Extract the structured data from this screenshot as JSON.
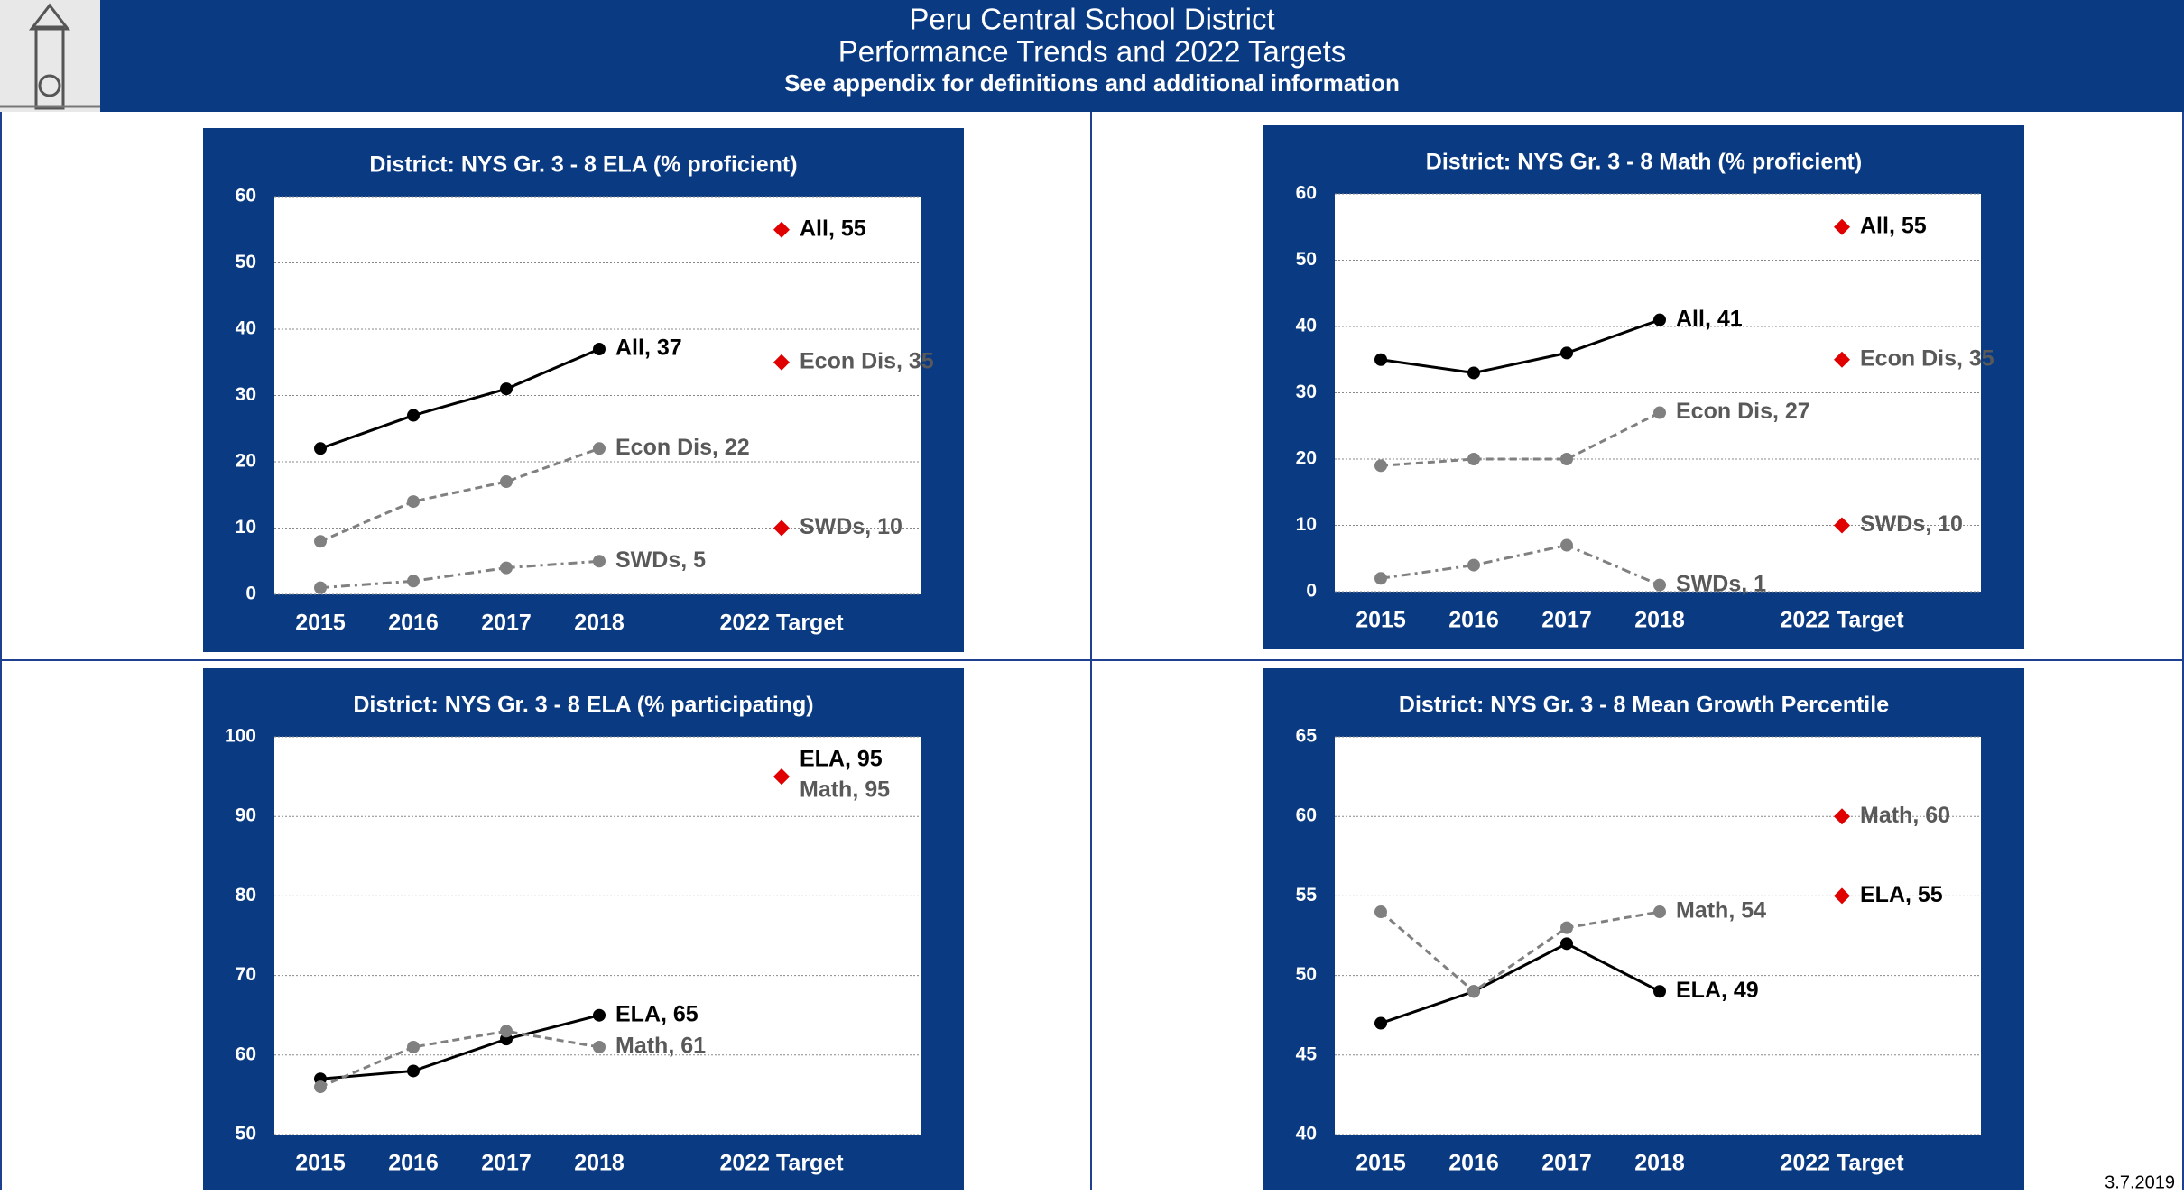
{
  "header": {
    "title": "Peru Central School District",
    "subtitle": "Performance Trends and 2022 Targets",
    "note": "See appendix for definitions and additional information",
    "date": "3.7.2019"
  },
  "chart_data": [
    {
      "type": "line",
      "title": "District:  NYS Gr. 3 - 8 ELA (% proficient)",
      "categories": [
        "2015",
        "2016",
        "2017",
        "2018",
        "2022 Target"
      ],
      "ylim": [
        0,
        60
      ],
      "yticks": [
        0,
        10,
        20,
        30,
        40,
        50,
        60
      ],
      "grid": true,
      "target_color": "#e00000",
      "series": [
        {
          "color": "#000000",
          "label_color": "#000000",
          "dash": "none",
          "values": [
            22,
            27,
            31,
            37,
            null
          ],
          "value_label": "All, 37",
          "target": 55,
          "target_label": "All, 55"
        },
        {
          "color": "#808080",
          "label_color": "#595959",
          "dash": "8 5",
          "values": [
            8,
            14,
            17,
            22,
            null
          ],
          "value_label": "Econ Dis, 22",
          "target": 35,
          "target_label": "Econ Dis, 35"
        },
        {
          "color": "#808080",
          "label_color": "#595959",
          "dash": "10 5 3 5",
          "values": [
            1,
            2,
            4,
            5,
            null
          ],
          "value_label": "SWDs, 5",
          "target": 10,
          "target_label": "SWDs, 10"
        }
      ]
    },
    {
      "type": "line",
      "title": "District:  NYS Gr. 3 - 8 Math (% proficient)",
      "categories": [
        "2015",
        "2016",
        "2017",
        "2018",
        "2022 Target"
      ],
      "ylim": [
        0,
        60
      ],
      "yticks": [
        0,
        10,
        20,
        30,
        40,
        50,
        60
      ],
      "grid": true,
      "target_color": "#e00000",
      "series": [
        {
          "color": "#000000",
          "label_color": "#000000",
          "dash": "none",
          "values": [
            35,
            33,
            36,
            41,
            null
          ],
          "value_label": "All, 41",
          "target": 55,
          "target_label": "All, 55"
        },
        {
          "color": "#808080",
          "label_color": "#595959",
          "dash": "8 5",
          "values": [
            19,
            20,
            20,
            27,
            null
          ],
          "value_label": "Econ Dis, 27",
          "target": 35,
          "target_label": "Econ Dis, 35"
        },
        {
          "color": "#808080",
          "label_color": "#595959",
          "dash": "10 5 3 5",
          "values": [
            2,
            4,
            7,
            1,
            null
          ],
          "value_label": "SWDs, 1",
          "target": 10,
          "target_label": "SWDs, 10"
        }
      ]
    },
    {
      "type": "line",
      "title": "District:  NYS Gr. 3 - 8 ELA (% participating)",
      "categories": [
        "2015",
        "2016",
        "2017",
        "2018",
        "2022 Target"
      ],
      "ylim": [
        50,
        100
      ],
      "yticks": [
        50,
        60,
        70,
        80,
        90,
        100
      ],
      "grid": true,
      "target_color": "#e00000",
      "series": [
        {
          "color": "#000000",
          "label_color": "#000000",
          "dash": "none",
          "values": [
            57,
            58,
            62,
            65,
            null
          ],
          "value_label": "ELA, 65",
          "target": 95,
          "target_label": "ELA, 95"
        },
        {
          "color": "#808080",
          "label_color": "#595959",
          "dash": "8 5",
          "values": [
            56,
            61,
            63,
            61,
            null
          ],
          "value_label": "Math, 61",
          "target": 95,
          "target_label": "Math, 95"
        }
      ]
    },
    {
      "type": "line",
      "title": "District:  NYS Gr. 3 - 8 Mean Growth Percentile",
      "categories": [
        "2015",
        "2016",
        "2017",
        "2018",
        "2022 Target"
      ],
      "ylim": [
        40,
        65
      ],
      "yticks": [
        40,
        45,
        50,
        55,
        60,
        65
      ],
      "grid": true,
      "target_color": "#e00000",
      "series": [
        {
          "color": "#000000",
          "label_color": "#000000",
          "dash": "none",
          "values": [
            47,
            49,
            52,
            49,
            null
          ],
          "value_label": "ELA, 49",
          "target": 55,
          "target_label": "ELA, 55"
        },
        {
          "color": "#808080",
          "label_color": "#595959",
          "dash": "8 5",
          "values": [
            54,
            49,
            53,
            54,
            null
          ],
          "value_label": "Math, 54",
          "target": 60,
          "target_label": "Math, 60"
        }
      ]
    }
  ]
}
